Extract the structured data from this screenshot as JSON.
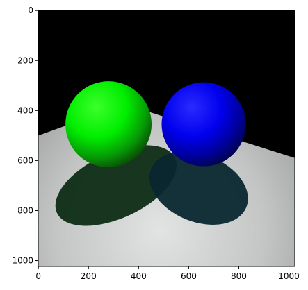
{
  "chart_data": {
    "type": "image",
    "image_size": [
      1024,
      1024
    ],
    "x_ticks": [
      0,
      200,
      400,
      600,
      800,
      1000
    ],
    "y_ticks": [
      0,
      200,
      400,
      600,
      800,
      1000
    ],
    "x_tick_labels": [
      "0",
      "200",
      "400",
      "600",
      "800",
      "1000"
    ],
    "y_tick_labels": [
      "0",
      "200",
      "400",
      "600",
      "800",
      "1000"
    ],
    "xlim": [
      -0.5,
      1023.5
    ],
    "ylim": [
      1023.5,
      -0.5
    ],
    "title": "",
    "xlabel": "",
    "ylabel": "",
    "scene": {
      "background_color": "#000000",
      "floor_colors": [
        "#e2e4e4",
        "#8d8f8f"
      ],
      "spheres": [
        {
          "name": "green-sphere",
          "center": [
            280,
            455
          ],
          "radius": 172,
          "color": "#00ff00",
          "shade_color": "#0b3a06"
        },
        {
          "name": "blue-sphere",
          "center": [
            660,
            455
          ],
          "radius": 168,
          "color": "#0000ff",
          "shade_color": "#02053a"
        }
      ],
      "shadows": [
        {
          "name": "green-shadow",
          "center": [
            310,
            700
          ],
          "radii": [
            260,
            130
          ],
          "rotation_deg": -25,
          "color": "#0e2d15"
        },
        {
          "name": "blue-shadow",
          "center": [
            640,
            710
          ],
          "radii": [
            205,
            135
          ],
          "rotation_deg": 22,
          "color": "#0a2730"
        }
      ],
      "floor_polygon": [
        [
          0,
          500
        ],
        [
          345,
          375
        ],
        [
          1024,
          590
        ],
        [
          1024,
          1024
        ],
        [
          0,
          1024
        ]
      ]
    }
  }
}
